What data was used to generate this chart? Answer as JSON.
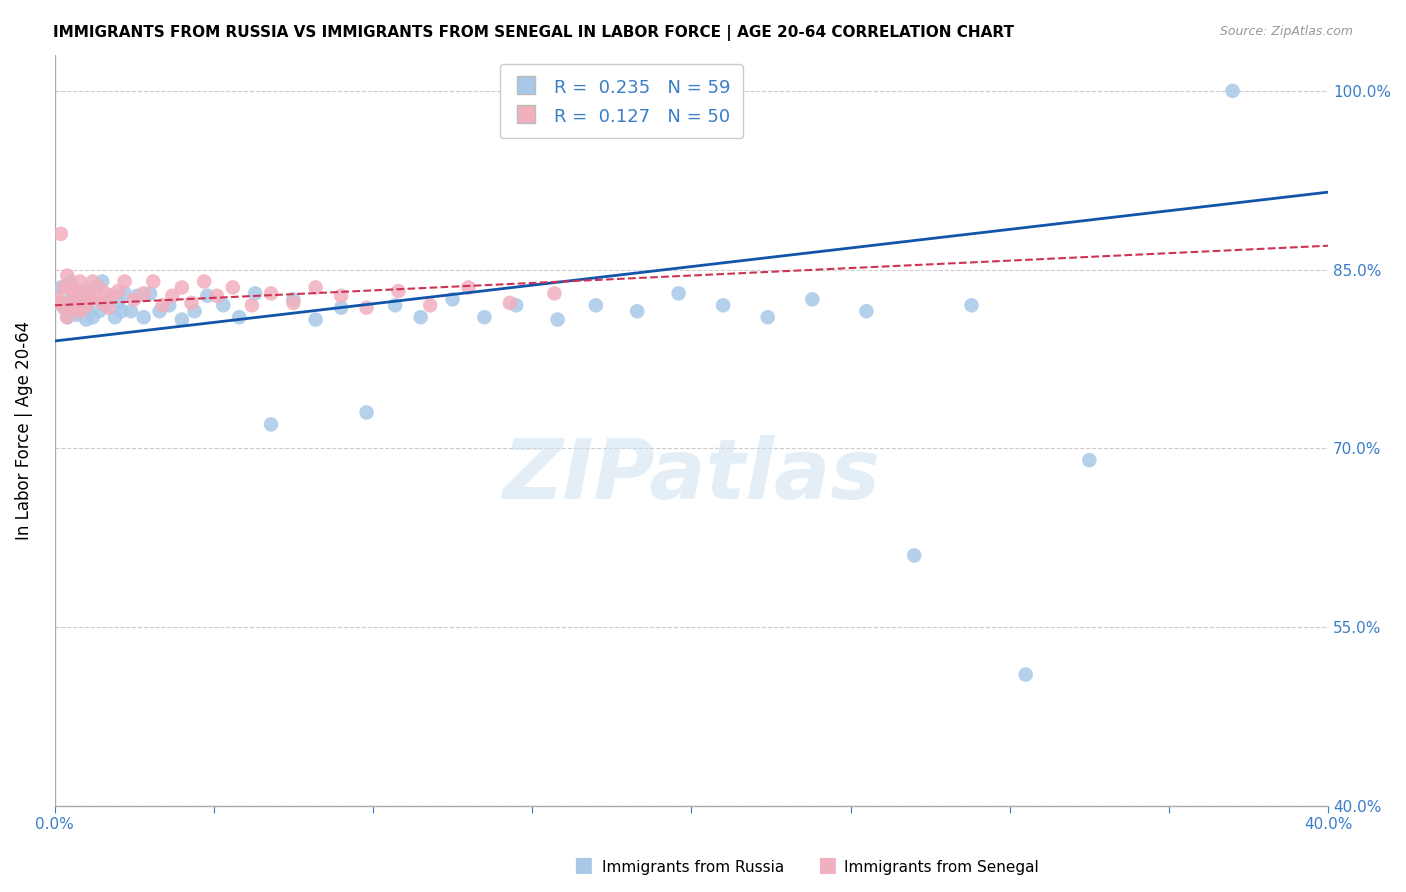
{
  "title": "IMMIGRANTS FROM RUSSIA VS IMMIGRANTS FROM SENEGAL IN LABOR FORCE | AGE 20-64 CORRELATION CHART",
  "source": "Source: ZipAtlas.com",
  "ylabel": "In Labor Force | Age 20-64",
  "xlim": [
    0.0,
    0.4
  ],
  "ylim": [
    0.4,
    1.03
  ],
  "yticks": [
    0.4,
    0.55,
    0.7,
    0.85,
    1.0
  ],
  "ytick_labels": [
    "40.0%",
    "55.0%",
    "70.0%",
    "85.0%",
    "100.0%"
  ],
  "xticks": [
    0.0,
    0.05,
    0.1,
    0.15,
    0.2,
    0.25,
    0.3,
    0.35,
    0.4
  ],
  "russia_color": "#a8c8e8",
  "senegal_color": "#f0b0be",
  "russia_line_color": "#1155aa",
  "senegal_line_color": "#cc3355",
  "R_russia": 0.235,
  "N_russia": 59,
  "R_senegal": 0.127,
  "N_senegal": 50,
  "watermark": "ZIPatlas",
  "russia_scatter_x": [
    0.001,
    0.002,
    0.003,
    0.004,
    0.005,
    0.005,
    0.006,
    0.007,
    0.007,
    0.008,
    0.009,
    0.01,
    0.01,
    0.011,
    0.012,
    0.013,
    0.014,
    0.015,
    0.016,
    0.018,
    0.019,
    0.02,
    0.021,
    0.022,
    0.024,
    0.026,
    0.028,
    0.03,
    0.033,
    0.036,
    0.04,
    0.044,
    0.048,
    0.053,
    0.058,
    0.063,
    0.068,
    0.075,
    0.082,
    0.09,
    0.098,
    0.107,
    0.115,
    0.125,
    0.135,
    0.145,
    0.158,
    0.17,
    0.183,
    0.196,
    0.21,
    0.224,
    0.238,
    0.255,
    0.27,
    0.288,
    0.305,
    0.325,
    0.37
  ],
  "russia_scatter_y": [
    0.822,
    0.835,
    0.818,
    0.81,
    0.825,
    0.84,
    0.815,
    0.828,
    0.812,
    0.82,
    0.83,
    0.808,
    0.818,
    0.825,
    0.81,
    0.835,
    0.815,
    0.84,
    0.82,
    0.828,
    0.81,
    0.822,
    0.815,
    0.83,
    0.815,
    0.828,
    0.81,
    0.83,
    0.815,
    0.82,
    0.808,
    0.815,
    0.828,
    0.82,
    0.81,
    0.83,
    0.72,
    0.825,
    0.808,
    0.818,
    0.73,
    0.82,
    0.81,
    0.825,
    0.81,
    0.82,
    0.808,
    0.82,
    0.815,
    0.83,
    0.82,
    0.81,
    0.825,
    0.815,
    0.61,
    0.82,
    0.51,
    0.69,
    1.0
  ],
  "senegal_scatter_x": [
    0.001,
    0.002,
    0.002,
    0.003,
    0.003,
    0.004,
    0.004,
    0.005,
    0.005,
    0.006,
    0.006,
    0.007,
    0.007,
    0.008,
    0.008,
    0.009,
    0.009,
    0.01,
    0.01,
    0.011,
    0.012,
    0.013,
    0.014,
    0.015,
    0.016,
    0.017,
    0.018,
    0.02,
    0.022,
    0.025,
    0.028,
    0.031,
    0.034,
    0.037,
    0.04,
    0.043,
    0.047,
    0.051,
    0.056,
    0.062,
    0.068,
    0.075,
    0.082,
    0.09,
    0.098,
    0.108,
    0.118,
    0.13,
    0.143,
    0.157
  ],
  "senegal_scatter_y": [
    0.825,
    0.88,
    0.822,
    0.835,
    0.818,
    0.845,
    0.81,
    0.835,
    0.822,
    0.828,
    0.818,
    0.832,
    0.82,
    0.84,
    0.815,
    0.828,
    0.818,
    0.832,
    0.82,
    0.825,
    0.84,
    0.828,
    0.835,
    0.822,
    0.83,
    0.818,
    0.828,
    0.832,
    0.84,
    0.825,
    0.83,
    0.84,
    0.82,
    0.828,
    0.835,
    0.822,
    0.84,
    0.828,
    0.835,
    0.82,
    0.83,
    0.822,
    0.835,
    0.828,
    0.818,
    0.832,
    0.82,
    0.835,
    0.822,
    0.83
  ],
  "russia_trendline": [
    0.0,
    0.4,
    0.79,
    0.915
  ],
  "senegal_trendline": [
    0.0,
    0.4,
    0.82,
    0.87
  ]
}
